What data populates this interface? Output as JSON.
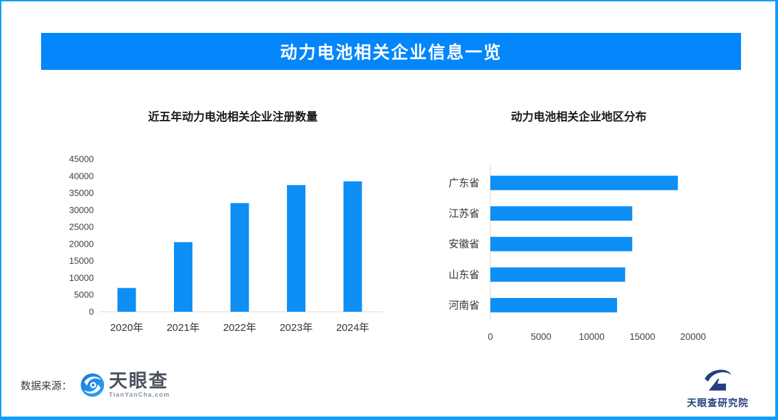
{
  "page": {
    "banner_title": "动力电池相关企业信息一览"
  },
  "chart_data": [
    {
      "type": "bar",
      "orientation": "vertical",
      "title": "近五年动力电池相关企业注册数量",
      "categories": [
        "2020年",
        "2021年",
        "2022年",
        "2023年",
        "2024年"
      ],
      "values": [
        7000,
        20500,
        32000,
        37300,
        38400
      ],
      "xlabel": "",
      "ylabel": "",
      "ylim": [
        0,
        45000
      ],
      "ytick_step": 5000,
      "grid": false,
      "legend": "none"
    },
    {
      "type": "bar",
      "orientation": "horizontal",
      "title": "动力电池相关企业地区分布",
      "categories": [
        "广东省",
        "江苏省",
        "安徽省",
        "山东省",
        "河南省"
      ],
      "values": [
        18500,
        14000,
        14000,
        13300,
        12500
      ],
      "xlabel": "",
      "ylabel": "",
      "xlim": [
        0,
        25000
      ],
      "xticks": [
        0,
        5000,
        10000,
        15000,
        20000
      ],
      "grid": false,
      "legend": "none"
    }
  ],
  "footer": {
    "source_label": "数据来源：",
    "tianyancha_logo": {
      "name": "天眼查",
      "domain": "TianYanCha.com"
    },
    "research_logo": {
      "name": "天眼查研究院"
    }
  },
  "colors": {
    "frame_border": "#119cfa",
    "banner_bg": "#0486fb",
    "bar_fill": "#0d8ff5",
    "axis_line": "#d9d9d9",
    "tick_text": "#404040",
    "category_text": "#333333",
    "chart_title_text": "#1a1a1a",
    "tyc_blue": "#1b84e7",
    "research_navy": "#24407e"
  }
}
